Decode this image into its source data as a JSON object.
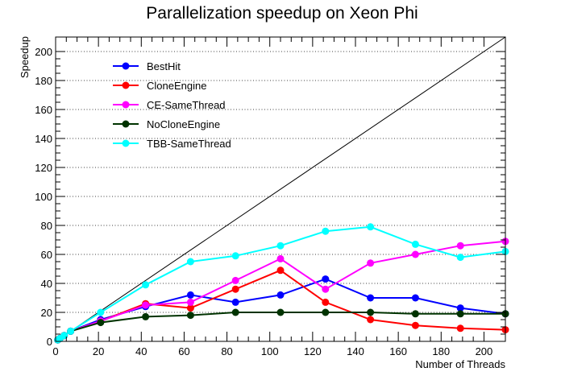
{
  "chart_data": {
    "type": "line",
    "title": "Parallelization speedup on Xeon Phi",
    "xlabel": "Number of Threads",
    "ylabel": "Speedup",
    "xlim": [
      0,
      210
    ],
    "ylim": [
      0,
      210
    ],
    "xticks": [
      0,
      20,
      40,
      60,
      80,
      100,
      120,
      140,
      160,
      180,
      200
    ],
    "yticks": [
      0,
      20,
      40,
      60,
      80,
      100,
      120,
      140,
      160,
      180,
      200
    ],
    "grid": "horizontal dotted",
    "legend_position": "top-left",
    "ideal_line": {
      "x": [
        0,
        210
      ],
      "y": [
        0,
        210
      ],
      "color": "#000000"
    },
    "series": [
      {
        "name": "BestHit",
        "color": "#0000ff",
        "x": [
          1,
          2,
          4,
          7,
          21,
          42,
          63,
          84,
          105,
          126,
          147,
          168,
          189,
          210
        ],
        "y": [
          1,
          2,
          4,
          7,
          15,
          24,
          32,
          27,
          32,
          43,
          30,
          30,
          23,
          19
        ]
      },
      {
        "name": "CloneEngine",
        "color": "#ff0000",
        "x": [
          1,
          2,
          4,
          7,
          21,
          42,
          63,
          84,
          105,
          126,
          147,
          168,
          189,
          210
        ],
        "y": [
          1,
          2,
          4,
          7,
          14,
          26,
          23,
          36,
          49,
          27,
          15,
          11,
          9,
          8
        ]
      },
      {
        "name": "CE-SameThread",
        "color": "#ff00ff",
        "x": [
          1,
          2,
          4,
          7,
          21,
          42,
          63,
          84,
          105,
          126,
          147,
          168,
          189,
          210
        ],
        "y": [
          1,
          2,
          4,
          7,
          14,
          25,
          27,
          42,
          57,
          36,
          54,
          60,
          66,
          69
        ]
      },
      {
        "name": "NoCloneEngine",
        "color": "#003300",
        "x": [
          1,
          2,
          4,
          7,
          21,
          42,
          63,
          84,
          105,
          126,
          147,
          168,
          189,
          210
        ],
        "y": [
          1,
          2,
          4,
          7,
          13,
          17,
          18,
          20,
          20,
          20,
          20,
          19,
          19,
          19
        ]
      },
      {
        "name": "TBB-SameThread",
        "color": "#00ffff",
        "x": [
          1,
          2,
          4,
          7,
          21,
          42,
          63,
          84,
          105,
          126,
          147,
          168,
          189,
          210
        ],
        "y": [
          1,
          2,
          4,
          7,
          20,
          39,
          55,
          59,
          66,
          76,
          79,
          67,
          58,
          62
        ]
      }
    ]
  }
}
